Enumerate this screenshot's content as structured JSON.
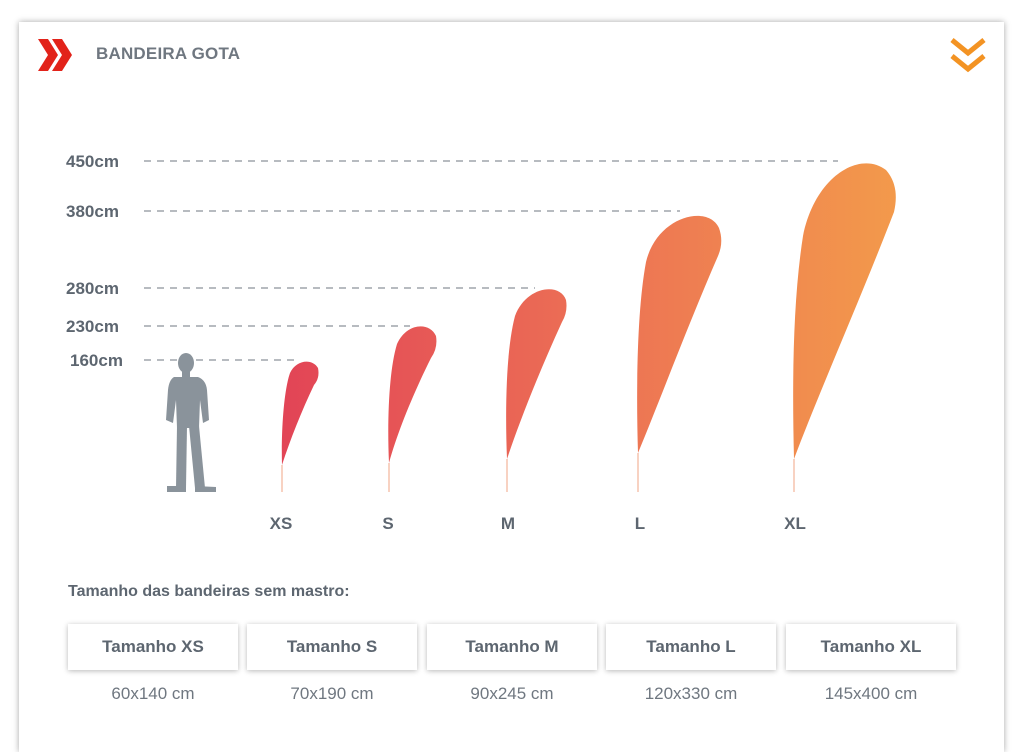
{
  "header": {
    "title": "BANDEIRA GOTA",
    "brand_color": "#e2231a",
    "accent_color": "#f39323"
  },
  "heights": [
    "450cm",
    "380cm",
    "280cm",
    "230cm",
    "160cm"
  ],
  "sizes": [
    "XS",
    "S",
    "M",
    "L",
    "XL"
  ],
  "table": {
    "heading": "Tamanho das bandeiras sem mastro:",
    "items": [
      {
        "label": "Tamanho XS",
        "dims": "60x140 cm"
      },
      {
        "label": "Tamanho S",
        "dims": "70x190 cm"
      },
      {
        "label": "Tamanho M",
        "dims": "90x245 cm"
      },
      {
        "label": "Tamanho L",
        "dims": "120x330 cm"
      },
      {
        "label": "Tamanho XL",
        "dims": "145x400 cm"
      }
    ]
  },
  "icons": {
    "header": "double-chevron-right-icon",
    "scroll": "double-chevron-down-icon",
    "person": "person-silhouette-icon"
  }
}
